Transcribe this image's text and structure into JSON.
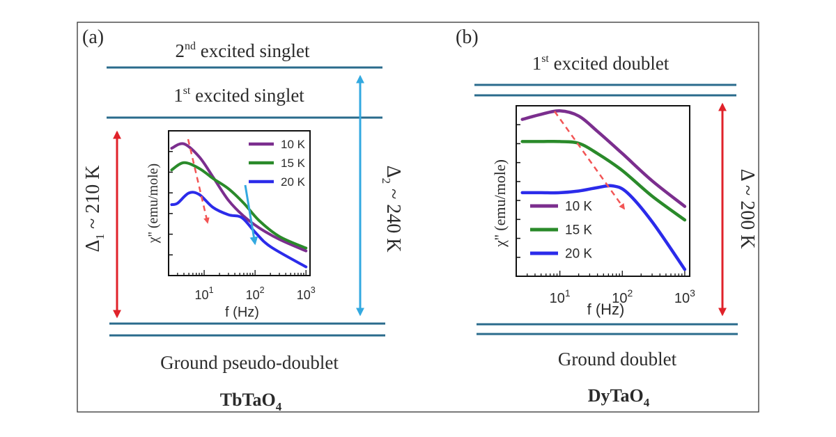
{
  "colors": {
    "level_line": "#2a6b8c",
    "red_arrow": "#e0222a",
    "blue_arrow": "#33a9e0",
    "dashed_arrow": "#f25555",
    "c10": "#7b2e8e",
    "c15": "#2a8a2a",
    "c20": "#2b2bea"
  },
  "panel_a": {
    "label": "(a)",
    "level2_pre": "2",
    "level2_sup": "nd",
    "level2_post": " excited singlet",
    "level1_pre": "1",
    "level1_sup": "st",
    "level1_post": " excited singlet",
    "ground": "Ground pseudo-doublet",
    "compound_pre": "TbTaO",
    "compound_sub": "4",
    "delta1_sym": "Δ",
    "delta1_sub": "1",
    "delta1_val": " ~ 210 K",
    "delta2_sym": "Δ",
    "delta2_sub": "2",
    "delta2_val": " ~ 240 K"
  },
  "panel_b": {
    "label": "(b)",
    "level1_pre": "1",
    "level1_sup": "st",
    "level1_post": " excited doublet",
    "ground": "Ground doublet",
    "compound_pre": "DyTaO",
    "compound_sub": "4",
    "delta": "Δ ~ 200 K"
  },
  "chart_data": [
    {
      "type": "line",
      "panel": "a",
      "ylabel": "χ'' (emu/mole)",
      "xlabel": "f (Hz)",
      "xscale": "log",
      "xticks": [
        "10",
        "10",
        "10"
      ],
      "xtick_exponents": [
        "1",
        "2",
        "3"
      ],
      "xlim": [
        2,
        1200
      ],
      "ylim": [
        0,
        1
      ],
      "legend_position": "top-right",
      "series": [
        {
          "name": "10 K",
          "color_key": "c10",
          "x": [
            2.3,
            4,
            8,
            15,
            30,
            60,
            120,
            300,
            1000
          ],
          "y": [
            0.88,
            0.91,
            0.82,
            0.68,
            0.52,
            0.41,
            0.33,
            0.25,
            0.17
          ]
        },
        {
          "name": "15 K",
          "color_key": "c15",
          "x": [
            2.3,
            4,
            8,
            15,
            30,
            60,
            120,
            300,
            1000
          ],
          "y": [
            0.73,
            0.78,
            0.74,
            0.67,
            0.6,
            0.5,
            0.38,
            0.27,
            0.19
          ]
        },
        {
          "name": "20 K",
          "color_key": "c20",
          "x": [
            2.3,
            3,
            5,
            8,
            15,
            30,
            55,
            100,
            200,
            1000
          ],
          "y": [
            0.49,
            0.5,
            0.57,
            0.56,
            0.47,
            0.42,
            0.4,
            0.3,
            0.2,
            0.06
          ]
        }
      ]
    },
    {
      "type": "line",
      "panel": "b",
      "ylabel": "χ'' (emu/mole)",
      "xlabel": "f (Hz)",
      "xscale": "log",
      "xticks": [
        "10",
        "10",
        "10"
      ],
      "xtick_exponents": [
        "1",
        "2",
        "3"
      ],
      "xlim": [
        2,
        1200
      ],
      "ylim": [
        0,
        1
      ],
      "legend_position": "bottom-left",
      "series": [
        {
          "name": "10 K",
          "color_key": "c10",
          "x": [
            2.5,
            5,
            10,
            20,
            40,
            100,
            300,
            1000
          ],
          "y": [
            0.92,
            0.95,
            0.97,
            0.94,
            0.85,
            0.72,
            0.56,
            0.41
          ]
        },
        {
          "name": "15 K",
          "color_key": "c15",
          "x": [
            2.5,
            5,
            10,
            20,
            40,
            100,
            300,
            1000
          ],
          "y": [
            0.79,
            0.79,
            0.79,
            0.78,
            0.72,
            0.62,
            0.47,
            0.33
          ]
        },
        {
          "name": "20 K",
          "color_key": "c20",
          "x": [
            2.5,
            5,
            10,
            20,
            40,
            70,
            120,
            300,
            1000
          ],
          "y": [
            0.49,
            0.49,
            0.49,
            0.5,
            0.52,
            0.53,
            0.49,
            0.32,
            0.04
          ]
        }
      ]
    }
  ]
}
